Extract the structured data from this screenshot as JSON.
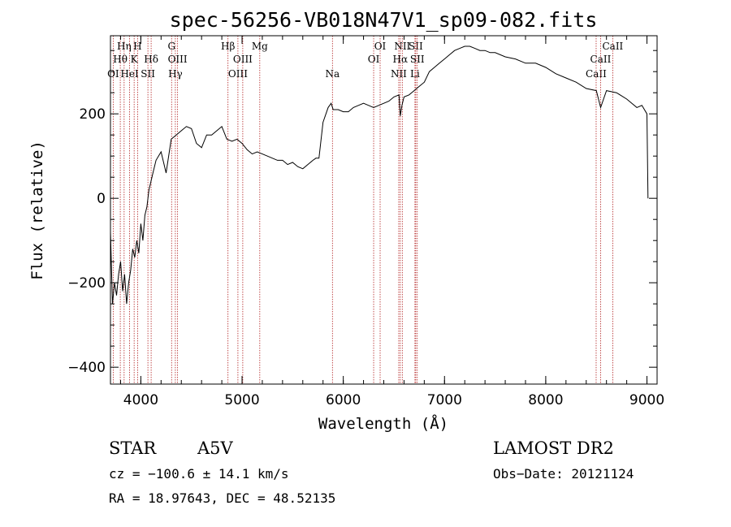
{
  "chart_data": {
    "type": "line",
    "title": "spec-56256-VB018N47V1_sp09-082.fits",
    "xlabel": "Wavelength (Å)",
    "ylabel": "Flux (relative)",
    "xlim": [
      3700,
      9100
    ],
    "ylim": [
      -440,
      385
    ],
    "xticks": [
      4000,
      5000,
      6000,
      7000,
      8000,
      9000
    ],
    "yticks": [
      -400,
      -200,
      0,
      200
    ],
    "grid": false,
    "series": [
      {
        "x": [
          3700,
          3720,
          3740,
          3760,
          3780,
          3800,
          3820,
          3840,
          3860,
          3880,
          3900,
          3920,
          3940,
          3960,
          3980,
          4000,
          4020,
          4040,
          4060,
          4080,
          4100,
          4120,
          4150,
          4200,
          4250,
          4300,
          4350,
          4400,
          4450,
          4500,
          4550,
          4600,
          4650,
          4700,
          4750,
          4800,
          4850,
          4900,
          4950,
          5000,
          5050,
          5100,
          5150,
          5200,
          5250,
          5300,
          5350,
          5400,
          5450,
          5500,
          5550,
          5600,
          5650,
          5700,
          5730,
          5760,
          5800,
          5850,
          5880,
          5900,
          5950,
          6000,
          6050,
          6100,
          6150,
          6200,
          6250,
          6300,
          6350,
          6400,
          6450,
          6500,
          6550,
          6563,
          6580,
          6600,
          6650,
          6700,
          6750,
          6800,
          6850,
          6900,
          6950,
          7000,
          7050,
          7100,
          7150,
          7200,
          7250,
          7300,
          7350,
          7400,
          7450,
          7500,
          7600,
          7700,
          7800,
          7900,
          8000,
          8100,
          8200,
          8300,
          8400,
          8500,
          8542,
          8600,
          8700,
          8800,
          8900,
          8950,
          9000,
          9010
        ],
        "y": [
          -80,
          -250,
          -200,
          -230,
          -180,
          -150,
          -220,
          -180,
          -250,
          -200,
          -170,
          -120,
          -140,
          -100,
          -130,
          -60,
          -100,
          -40,
          -20,
          20,
          40,
          60,
          90,
          110,
          60,
          140,
          150,
          160,
          170,
          165,
          130,
          120,
          150,
          150,
          160,
          170,
          140,
          135,
          140,
          130,
          115,
          105,
          110,
          105,
          100,
          95,
          90,
          90,
          80,
          85,
          75,
          70,
          80,
          90,
          95,
          95,
          180,
          215,
          225,
          210,
          210,
          205,
          205,
          215,
          220,
          225,
          220,
          215,
          220,
          225,
          230,
          240,
          245,
          195,
          220,
          240,
          245,
          255,
          265,
          275,
          300,
          310,
          320,
          330,
          340,
          350,
          355,
          360,
          360,
          355,
          350,
          350,
          345,
          345,
          335,
          330,
          320,
          320,
          310,
          295,
          285,
          275,
          260,
          255,
          215,
          255,
          250,
          235,
          215,
          220,
          200,
          0
        ]
      }
    ],
    "lines": [
      {
        "name": "OI",
        "wl": 3727,
        "row": 3
      },
      {
        "name": "Hη",
        "wl": 3835,
        "row": 1
      },
      {
        "name": "Hθ",
        "wl": 3797,
        "row": 2
      },
      {
        "name": "HeI",
        "wl": 3889,
        "row": 3
      },
      {
        "name": "K",
        "wl": 3934,
        "row": 2
      },
      {
        "name": "H",
        "wl": 3968,
        "row": 1
      },
      {
        "name": "SII",
        "wl": 4070,
        "row": 3
      },
      {
        "name": "Hδ",
        "wl": 4102,
        "row": 2
      },
      {
        "name": "G",
        "wl": 4304,
        "row": 1
      },
      {
        "name": "OIII",
        "wl": 4363,
        "row": 2
      },
      {
        "name": "Hγ",
        "wl": 4341,
        "row": 3
      },
      {
        "name": "Hβ",
        "wl": 4861,
        "row": 1
      },
      {
        "name": "OIII",
        "wl": 4959,
        "row": 3
      },
      {
        "name": "OIII",
        "wl": 5007,
        "row": 2
      },
      {
        "name": "Mg",
        "wl": 5175,
        "row": 1
      },
      {
        "name": "Na",
        "wl": 5893,
        "row": 3
      },
      {
        "name": "OI",
        "wl": 6300,
        "row": 2
      },
      {
        "name": "OI",
        "wl": 6364,
        "row": 1
      },
      {
        "name": "NII",
        "wl": 6548,
        "row": 3
      },
      {
        "name": "NII",
        "wl": 6583,
        "row": 1
      },
      {
        "name": "Hα",
        "wl": 6563,
        "row": 2
      },
      {
        "name": "Li",
        "wl": 6708,
        "row": 3
      },
      {
        "name": "SII",
        "wl": 6716,
        "row": 1
      },
      {
        "name": "SII",
        "wl": 6731,
        "row": 2
      },
      {
        "name": "CaII",
        "wl": 8498,
        "row": 3
      },
      {
        "name": "CaII",
        "wl": 8542,
        "row": 2
      },
      {
        "name": "CaII",
        "wl": 8662,
        "row": 1
      }
    ]
  },
  "info": {
    "class": "STAR",
    "subclass": "A5V",
    "survey": "LAMOST DR2",
    "cz": "cz = −100.6 ± 14.1 km/s",
    "obsdate": "Obs−Date: 20121124",
    "radec": "RA =  18.97643, DEC =  48.52135"
  },
  "colors": {
    "spectrum": "#000000",
    "line_markers": "#b22222"
  }
}
